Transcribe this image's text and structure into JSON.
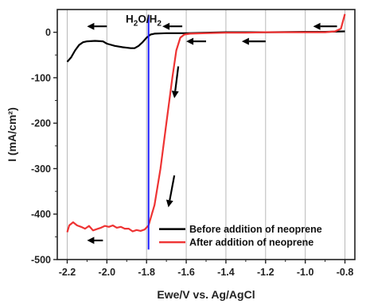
{
  "chart_data": {
    "type": "line",
    "title": "",
    "xlabel": "Ewe/V vs. Ag/AgCl",
    "ylabel": "I (mA/cm²)",
    "xlim": [
      -2.25,
      -0.75
    ],
    "ylim": [
      -500,
      50
    ],
    "x_ticks": [
      -2.2,
      -2.0,
      -1.8,
      -1.6,
      -1.4,
      -1.2,
      -1.0,
      -0.8
    ],
    "x_tick_labels": [
      "-2.2",
      "-2.0",
      "-1.8",
      "-1.6",
      "-1.4",
      "-1.2",
      "-1.0",
      "-0.8"
    ],
    "y_ticks": [
      0,
      -100,
      -200,
      -300,
      -400,
      -500
    ],
    "y_tick_labels": [
      "0",
      "-100",
      "-200",
      "-300",
      "-400",
      "-500"
    ],
    "grid": "vertical",
    "legend_position": "bottom-right",
    "annotation": {
      "parts": [
        "H",
        "2",
        "O/H",
        "2"
      ],
      "x_value": -1.79,
      "line_color": "#1a1aff"
    },
    "series": [
      {
        "name": "Before addition of neoprene",
        "color": "#000000",
        "points": [
          [
            -2.2,
            -65
          ],
          [
            -2.18,
            -55
          ],
          [
            -2.16,
            -40
          ],
          [
            -2.14,
            -28
          ],
          [
            -2.12,
            -22
          ],
          [
            -2.1,
            -20
          ],
          [
            -2.06,
            -19
          ],
          [
            -2.02,
            -20
          ],
          [
            -2.0,
            -25
          ],
          [
            -1.96,
            -30
          ],
          [
            -1.92,
            -33
          ],
          [
            -1.88,
            -35
          ],
          [
            -1.86,
            -35
          ],
          [
            -1.84,
            -30
          ],
          [
            -1.82,
            -22
          ],
          [
            -1.8,
            -12
          ],
          [
            -1.78,
            -5
          ],
          [
            -1.76,
            -3
          ],
          [
            -1.7,
            -2
          ],
          [
            -1.6,
            -2
          ],
          [
            -1.5,
            -1
          ],
          [
            -1.4,
            0
          ],
          [
            -1.2,
            0
          ],
          [
            -1.0,
            1
          ],
          [
            -0.9,
            1
          ],
          [
            -0.8,
            2
          ]
        ]
      },
      {
        "name": "After addition of neoprene",
        "color": "#ee3333",
        "points": [
          [
            -2.2,
            -440
          ],
          [
            -2.19,
            -425
          ],
          [
            -2.17,
            -418
          ],
          [
            -2.15,
            -425
          ],
          [
            -2.13,
            -428
          ],
          [
            -2.11,
            -432
          ],
          [
            -2.09,
            -426
          ],
          [
            -2.07,
            -436
          ],
          [
            -2.05,
            -433
          ],
          [
            -2.03,
            -430
          ],
          [
            -2.01,
            -426
          ],
          [
            -1.99,
            -428
          ],
          [
            -1.97,
            -425
          ],
          [
            -1.95,
            -430
          ],
          [
            -1.93,
            -428
          ],
          [
            -1.91,
            -432
          ],
          [
            -1.89,
            -432
          ],
          [
            -1.87,
            -438
          ],
          [
            -1.85,
            -435
          ],
          [
            -1.83,
            -437
          ],
          [
            -1.81,
            -434
          ],
          [
            -1.79,
            -425
          ],
          [
            -1.76,
            -380
          ],
          [
            -1.73,
            -300
          ],
          [
            -1.7,
            -200
          ],
          [
            -1.67,
            -100
          ],
          [
            -1.65,
            -40
          ],
          [
            -1.63,
            -12
          ],
          [
            -1.61,
            -5
          ],
          [
            -1.58,
            -3
          ],
          [
            -1.5,
            -2
          ],
          [
            -1.4,
            -1
          ],
          [
            -1.3,
            -1
          ],
          [
            -1.2,
            0
          ],
          [
            -1.1,
            0
          ],
          [
            -1.0,
            0
          ],
          [
            -0.9,
            0
          ],
          [
            -0.85,
            2
          ],
          [
            -0.82,
            8
          ],
          [
            -0.8,
            40
          ]
        ]
      }
    ],
    "arrows": [
      {
        "color": "#000000",
        "from": [
          -2.0,
          13
        ],
        "to": [
          -2.1,
          13
        ]
      },
      {
        "color": "#000000",
        "from": [
          -1.62,
          13
        ],
        "to": [
          -1.72,
          13
        ]
      },
      {
        "color": "#000000",
        "from": [
          -1.5,
          -20
        ],
        "to": [
          -1.6,
          -20
        ]
      },
      {
        "color": "#000000",
        "from": [
          -1.2,
          -20
        ],
        "to": [
          -1.32,
          -20
        ]
      },
      {
        "color": "#000000",
        "from": [
          -0.84,
          13
        ],
        "to": [
          -0.96,
          13
        ]
      },
      {
        "color": "#000000",
        "from": [
          -2.02,
          -458
        ],
        "to": [
          -2.1,
          -458
        ]
      },
      {
        "color": "#000000",
        "from": [
          -1.64,
          -75
        ],
        "to": [
          -1.66,
          -145
        ]
      },
      {
        "color": "#000000",
        "from": [
          -1.66,
          -315
        ],
        "to": [
          -1.69,
          -385
        ]
      }
    ]
  }
}
